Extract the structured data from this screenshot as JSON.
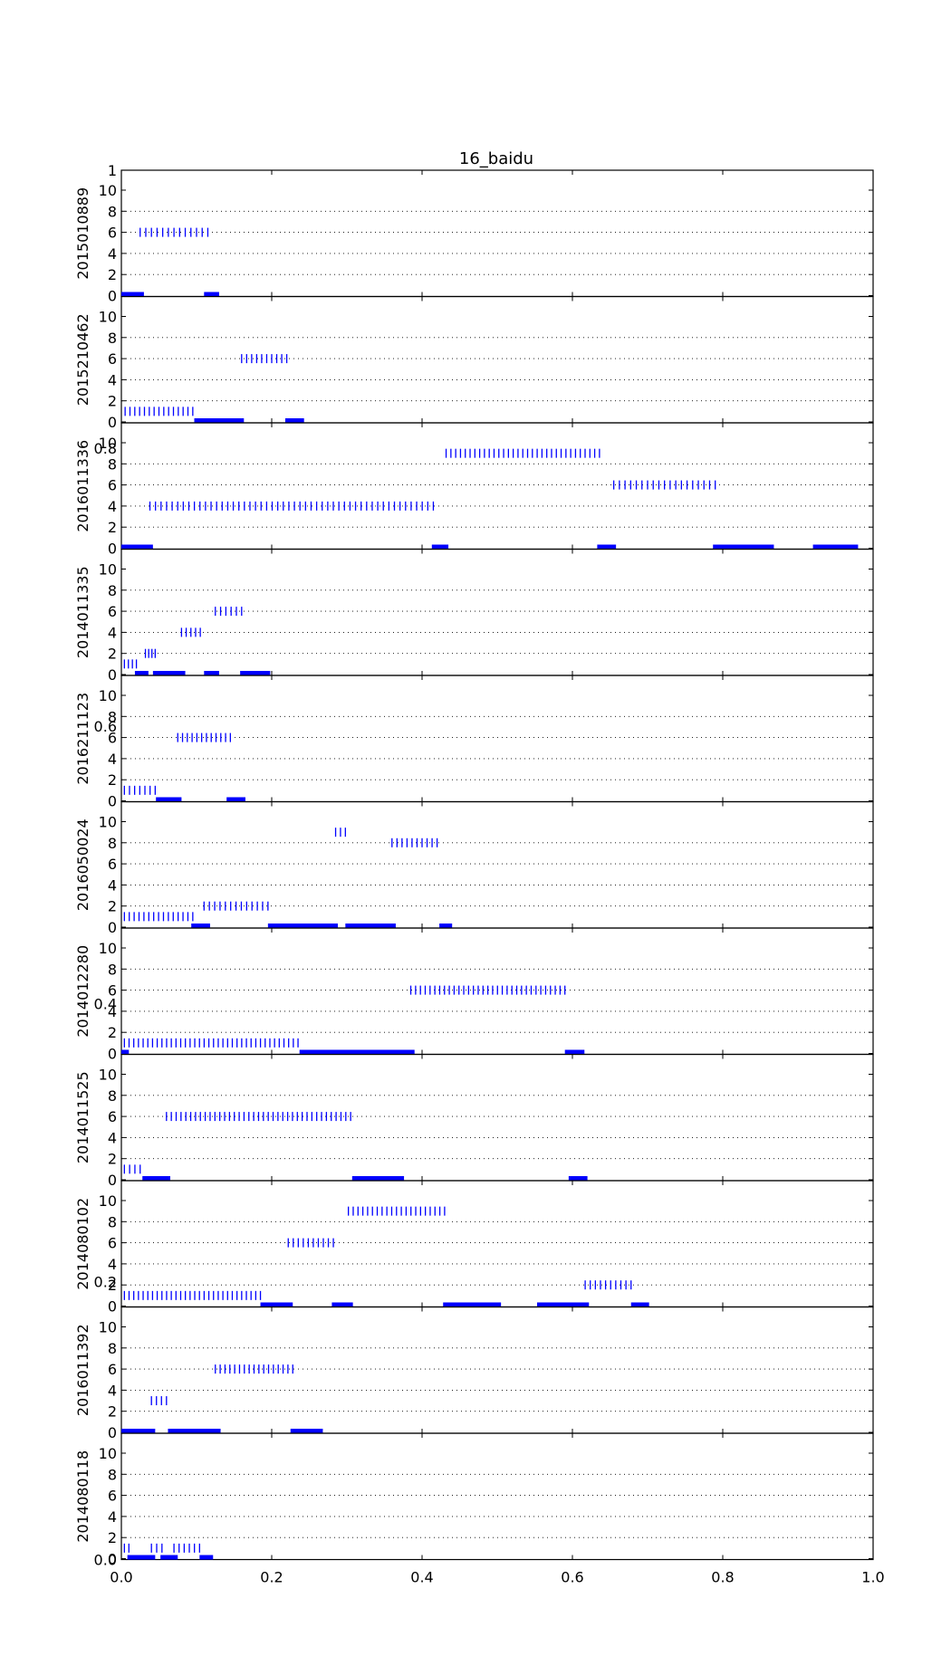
{
  "chart_data": {
    "type": "event-raster",
    "title": "16_baidu",
    "ylim": [
      0,
      10
    ],
    "y_ticks": [
      "0",
      "2",
      "4",
      "6",
      "8",
      "10"
    ],
    "xlim": [
      0.0,
      1.0
    ],
    "x_ticks": [
      "0.0",
      "0.2",
      "0.4",
      "0.6",
      "0.8",
      "1.0"
    ],
    "stray_tick_labels": [
      "1",
      "0.8",
      "0.6",
      "0.4",
      "0.2",
      "0.0"
    ],
    "grid": "horizontal dotted",
    "color": "#0000ff",
    "panels": [
      {
        "label": "2015010889",
        "events": [
          {
            "y": 6,
            "start": 0.025,
            "end": 0.115,
            "count": 13
          }
        ],
        "segments": [
          [
            0.0,
            0.03
          ],
          [
            0.11,
            0.13
          ]
        ]
      },
      {
        "label": "2015210462",
        "events": [
          {
            "y": 1,
            "start": 0.005,
            "end": 0.095,
            "count": 15
          },
          {
            "y": 6,
            "start": 0.16,
            "end": 0.22,
            "count": 10
          }
        ],
        "segments": [
          [
            0.097,
            0.163
          ],
          [
            0.218,
            0.243
          ]
        ]
      },
      {
        "label": "2016011336",
        "events": [
          {
            "y": 4,
            "start": 0.038,
            "end": 0.415,
            "count": 52
          },
          {
            "y": 9,
            "start": 0.432,
            "end": 0.636,
            "count": 33
          },
          {
            "y": 6,
            "start": 0.655,
            "end": 0.79,
            "count": 19
          }
        ],
        "segments": [
          [
            0.0,
            0.042
          ],
          [
            0.413,
            0.435
          ],
          [
            0.633,
            0.658
          ],
          [
            0.787,
            0.868
          ],
          [
            0.92,
            0.98
          ]
        ]
      },
      {
        "label": "2014011335",
        "events": [
          {
            "y": 1,
            "start": 0.004,
            "end": 0.02,
            "count": 4
          },
          {
            "y": 2,
            "start": 0.032,
            "end": 0.045,
            "count": 4
          },
          {
            "y": 4,
            "start": 0.08,
            "end": 0.105,
            "count": 5
          },
          {
            "y": 6,
            "start": 0.125,
            "end": 0.16,
            "count": 6
          }
        ],
        "segments": [
          [
            0.018,
            0.036
          ],
          [
            0.042,
            0.085
          ],
          [
            0.11,
            0.13
          ],
          [
            0.158,
            0.198
          ]
        ]
      },
      {
        "label": "2016211123",
        "events": [
          {
            "y": 1,
            "start": 0.004,
            "end": 0.045,
            "count": 7
          },
          {
            "y": 6,
            "start": 0.075,
            "end": 0.145,
            "count": 12
          }
        ],
        "segments": [
          [
            0.046,
            0.08
          ],
          [
            0.14,
            0.165
          ]
        ]
      },
      {
        "label": "2016050024",
        "events": [
          {
            "y": 1,
            "start": 0.004,
            "end": 0.095,
            "count": 15
          },
          {
            "y": 2,
            "start": 0.11,
            "end": 0.195,
            "count": 13
          },
          {
            "y": 9,
            "start": 0.285,
            "end": 0.298,
            "count": 3
          },
          {
            "y": 8,
            "start": 0.36,
            "end": 0.42,
            "count": 10
          }
        ],
        "segments": [
          [
            0.093,
            0.118
          ],
          [
            0.195,
            0.288
          ],
          [
            0.298,
            0.365
          ],
          [
            0.423,
            0.44
          ]
        ]
      },
      {
        "label": "2014012280",
        "events": [
          {
            "y": 1,
            "start": 0.004,
            "end": 0.235,
            "count": 38
          },
          {
            "y": 6,
            "start": 0.385,
            "end": 0.59,
            "count": 33
          }
        ],
        "segments": [
          [
            0.0,
            0.01
          ],
          [
            0.237,
            0.39
          ],
          [
            0.59,
            0.616
          ]
        ]
      },
      {
        "label": "2014011525",
        "events": [
          {
            "y": 1,
            "start": 0.004,
            "end": 0.025,
            "count": 4
          },
          {
            "y": 6,
            "start": 0.06,
            "end": 0.305,
            "count": 39
          }
        ],
        "segments": [
          [
            0.028,
            0.065
          ],
          [
            0.307,
            0.376
          ],
          [
            0.595,
            0.62
          ]
        ]
      },
      {
        "label": "2014080102",
        "events": [
          {
            "y": 1,
            "start": 0.004,
            "end": 0.185,
            "count": 30
          },
          {
            "y": 6,
            "start": 0.222,
            "end": 0.282,
            "count": 10
          },
          {
            "y": 9,
            "start": 0.302,
            "end": 0.43,
            "count": 21
          },
          {
            "y": 2,
            "start": 0.617,
            "end": 0.678,
            "count": 10
          }
        ],
        "segments": [
          [
            0.185,
            0.228
          ],
          [
            0.28,
            0.308
          ],
          [
            0.428,
            0.505
          ],
          [
            0.553,
            0.622
          ],
          [
            0.678,
            0.702
          ]
        ]
      },
      {
        "label": "2016011392",
        "events": [
          {
            "y": 3,
            "start": 0.04,
            "end": 0.06,
            "count": 4
          },
          {
            "y": 6,
            "start": 0.125,
            "end": 0.228,
            "count": 17
          }
        ],
        "segments": [
          [
            0.0,
            0.045
          ],
          [
            0.062,
            0.132
          ],
          [
            0.225,
            0.268
          ]
        ]
      },
      {
        "label": "2014080118",
        "events": [
          {
            "y": 1,
            "start": 0.004,
            "end": 0.01,
            "count": 2
          },
          {
            "y": 1,
            "start": 0.04,
            "end": 0.054,
            "count": 3
          },
          {
            "y": 1,
            "start": 0.07,
            "end": 0.104,
            "count": 6
          }
        ],
        "segments": [
          [
            0.008,
            0.045
          ],
          [
            0.052,
            0.075
          ],
          [
            0.104,
            0.122
          ]
        ]
      }
    ]
  }
}
